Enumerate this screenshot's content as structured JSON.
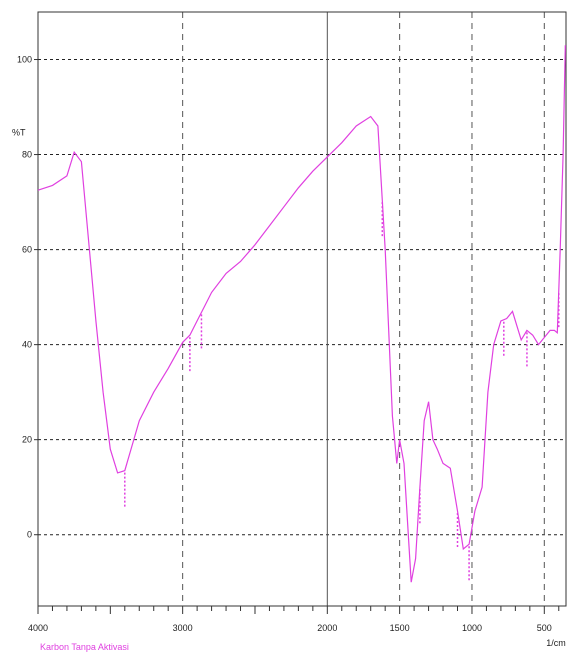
{
  "chart_data": {
    "type": "line",
    "title": "",
    "xlabel": "",
    "ylabel": "",
    "x_unit_label": "1/cm",
    "legend": "Karbon Tanpa Aktivasi",
    "xlim": [
      4000,
      350
    ],
    "ylim": [
      -15,
      110
    ],
    "x_ticks": [
      {
        "value": 4000,
        "label": "4000"
      },
      {
        "value": 3000,
        "label": "3000"
      },
      {
        "value": 2000,
        "label": "2000"
      },
      {
        "value": 1500,
        "label": "1500"
      },
      {
        "value": 1000,
        "label": "1000"
      },
      {
        "value": 500,
        "label": "500"
      }
    ],
    "y_ticks": [
      {
        "value": 0,
        "label": "0"
      },
      {
        "value": 20,
        "label": "20"
      },
      {
        "value": 40,
        "label": "40"
      },
      {
        "value": 60,
        "label": "60"
      },
      {
        "value": 80,
        "label": "80"
      },
      {
        "value": 100,
        "label": "100"
      }
    ],
    "y_axis_title": "%T",
    "series": [
      {
        "name": "Karbon Tanpa Aktivasi",
        "color": "#e040e0",
        "points": [
          [
            4000,
            72.5
          ],
          [
            3900,
            73.5
          ],
          [
            3800,
            75.5
          ],
          [
            3750,
            80.5
          ],
          [
            3700,
            78.5
          ],
          [
            3600,
            45
          ],
          [
            3550,
            30
          ],
          [
            3500,
            18
          ],
          [
            3450,
            13
          ],
          [
            3400,
            13.5
          ],
          [
            3300,
            24
          ],
          [
            3200,
            30
          ],
          [
            3100,
            35
          ],
          [
            3000,
            40.5
          ],
          [
            2950,
            42
          ],
          [
            2900,
            45
          ],
          [
            2850,
            48
          ],
          [
            2800,
            51
          ],
          [
            2700,
            55
          ],
          [
            2600,
            57.5
          ],
          [
            2500,
            61
          ],
          [
            2400,
            65
          ],
          [
            2300,
            69
          ],
          [
            2200,
            73
          ],
          [
            2100,
            76.5
          ],
          [
            2000,
            79.5
          ],
          [
            1900,
            82.5
          ],
          [
            1800,
            86
          ],
          [
            1700,
            88
          ],
          [
            1650,
            86
          ],
          [
            1600,
            60
          ],
          [
            1550,
            25
          ],
          [
            1520,
            15
          ],
          [
            1500,
            20
          ],
          [
            1470,
            15
          ],
          [
            1440,
            0
          ],
          [
            1420,
            -10
          ],
          [
            1390,
            -5
          ],
          [
            1360,
            10
          ],
          [
            1330,
            24
          ],
          [
            1300,
            28
          ],
          [
            1270,
            20
          ],
          [
            1240,
            18
          ],
          [
            1200,
            15
          ],
          [
            1150,
            14
          ],
          [
            1100,
            5
          ],
          [
            1060,
            -3
          ],
          [
            1020,
            -2
          ],
          [
            980,
            5
          ],
          [
            930,
            10
          ],
          [
            890,
            30
          ],
          [
            850,
            40
          ],
          [
            800,
            45
          ],
          [
            760,
            45.5
          ],
          [
            720,
            47
          ],
          [
            690,
            44
          ],
          [
            660,
            41
          ],
          [
            620,
            43
          ],
          [
            580,
            42
          ],
          [
            540,
            40
          ],
          [
            500,
            41.5
          ],
          [
            460,
            43
          ],
          [
            430,
            43
          ],
          [
            410,
            42.5
          ],
          [
            390,
            60
          ],
          [
            370,
            80
          ],
          [
            355,
            103
          ]
        ]
      }
    ],
    "annotations": [
      {
        "x": 3400,
        "label": "3400"
      },
      {
        "x": 2950,
        "label": "2950"
      },
      {
        "x": 2870,
        "label": "2870"
      },
      {
        "x": 1620,
        "label": "1620"
      },
      {
        "x": 1360,
        "label": "1360"
      },
      {
        "x": 1100,
        "label": "1100"
      },
      {
        "x": 1020,
        "label": "1020"
      },
      {
        "x": 780,
        "label": "780"
      },
      {
        "x": 620,
        "label": "620"
      },
      {
        "x": 400,
        "label": "400"
      }
    ],
    "grid": true
  }
}
